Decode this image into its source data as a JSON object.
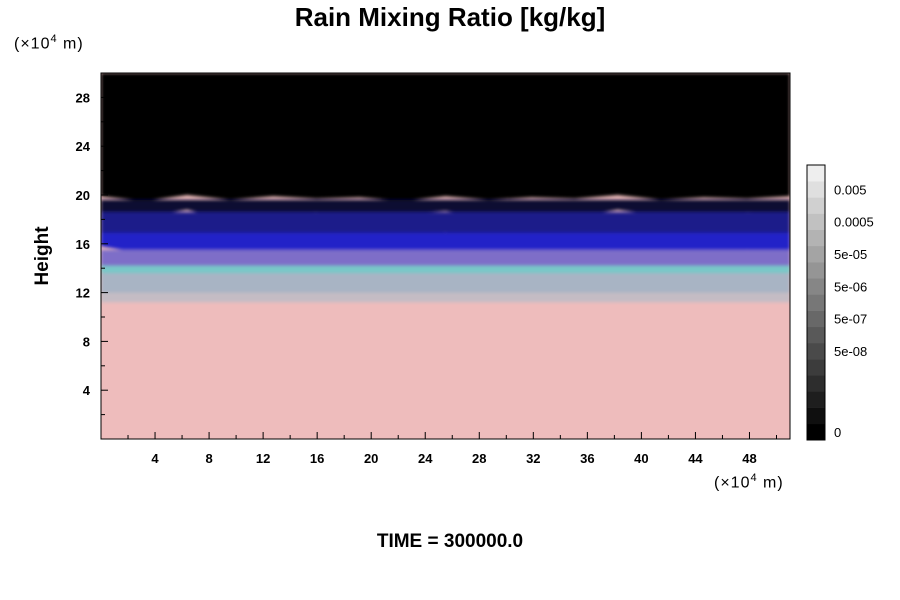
{
  "chart_data": {
    "type": "heatmap",
    "title": "Rain Mixing Ratio [kg/kg]",
    "ylabel": "Height",
    "y_unit_label": "(×10",
    "x_unit_label": "(×10",
    "unit_exponent": "4",
    "unit_suffix": " m)",
    "footer": "TIME = 300000.0",
    "xlim": [
      0,
      51
    ],
    "ylim": [
      0,
      30
    ],
    "x_ticks": [
      4,
      8,
      12,
      16,
      20,
      24,
      28,
      32,
      36,
      40,
      44,
      48
    ],
    "x_minor_ticks": [
      2,
      6,
      10,
      14,
      18,
      22,
      26,
      30,
      34,
      38,
      42,
      46,
      50
    ],
    "y_ticks": [
      4,
      8,
      12,
      16,
      20,
      24,
      28
    ],
    "y_minor_ticks": [
      2,
      6,
      10,
      14,
      18,
      22,
      26
    ],
    "layers": [
      {
        "color": "#000000",
        "y_top": 30,
        "profile": [
          19.9,
          19.5,
          20.0,
          19.6,
          19.9,
          19.7,
          19.8,
          19.5,
          19.9,
          19.6,
          19.8,
          19.7,
          20.0,
          19.6,
          19.8,
          19.7,
          19.9
        ]
      },
      {
        "color": "#101030",
        "y_top": 19.6,
        "profile": [
          18.5,
          18.2,
          18.8,
          17.9,
          18.3,
          18.6,
          18.0,
          18.4,
          18.7,
          18.1,
          18.5,
          18.2,
          18.8,
          18.3,
          18.0,
          18.6,
          18.4
        ]
      },
      {
        "color": "#1a1a8a",
        "y_top": 18.6,
        "profile": [
          16.6,
          16.2,
          16.8,
          15.9,
          16.3,
          16.7,
          16.0,
          16.4,
          16.9,
          16.1,
          16.5,
          16.2,
          16.7,
          16.0,
          16.4,
          16.6,
          16.3
        ]
      },
      {
        "color": "#2222c8",
        "y_top": 16.9,
        "profile": [
          15.8,
          15.2,
          14.6,
          13.8,
          14.4,
          15.1,
          14.0,
          15.3,
          14.7,
          15.0,
          14.5,
          15.2,
          14.8,
          15.4,
          15.0,
          15.5,
          15.3
        ]
      },
      {
        "color": "#7e6ec8",
        "y_top": 15.5,
        "profile": [
          13.2,
          12.9,
          12.6,
          12.1,
          12.8,
          13.0,
          13.3,
          12.7,
          13.1,
          12.5,
          13.0,
          12.8,
          13.2,
          12.9,
          13.1,
          12.7,
          13.0
        ]
      },
      {
        "color": "#78c8c8",
        "y_top": 14.2,
        "profile": [
          13.6,
          13.3,
          13.0,
          12.6,
          13.2,
          13.4,
          13.5,
          13.1,
          13.4,
          12.9,
          13.3,
          13.2,
          13.5,
          13.3,
          13.4,
          13.1,
          13.6
        ]
      },
      {
        "color": "#a8b4c4",
        "y_top": 13.6,
        "profile": [
          12.0,
          11.6,
          11.8,
          11.2,
          10.8,
          11.4,
          10.9,
          11.5,
          11.7,
          11.3,
          11.8,
          11.5,
          11.9,
          11.4,
          11.7,
          11.5,
          12.0
        ]
      },
      {
        "color": "#c4bcc4",
        "y_top": 12.0,
        "profile": [
          11.2,
          10.8,
          11.0,
          10.4,
          9.8,
          10.3,
          9.6,
          10.9,
          11.0,
          10.7,
          11.1,
          10.8,
          11.2,
          10.9,
          11.0,
          10.8,
          11.2
        ]
      },
      {
        "color": "#eebcbc",
        "y_top": 11.2,
        "profile": [
          0,
          0,
          0,
          0,
          0,
          0,
          0,
          0,
          0,
          0,
          0,
          0,
          0,
          0,
          0,
          0,
          0
        ]
      }
    ],
    "colorbar": {
      "levels": 17,
      "labels": [
        {
          "text": "0.005",
          "level": 15
        },
        {
          "text": "0.0005",
          "level": 13
        },
        {
          "text": "5e-05",
          "level": 11
        },
        {
          "text": "5e-06",
          "level": 9
        },
        {
          "text": "5e-07",
          "level": 7
        },
        {
          "text": "5e-08",
          "level": 5
        },
        {
          "text": "0",
          "level": 0
        }
      ]
    }
  }
}
